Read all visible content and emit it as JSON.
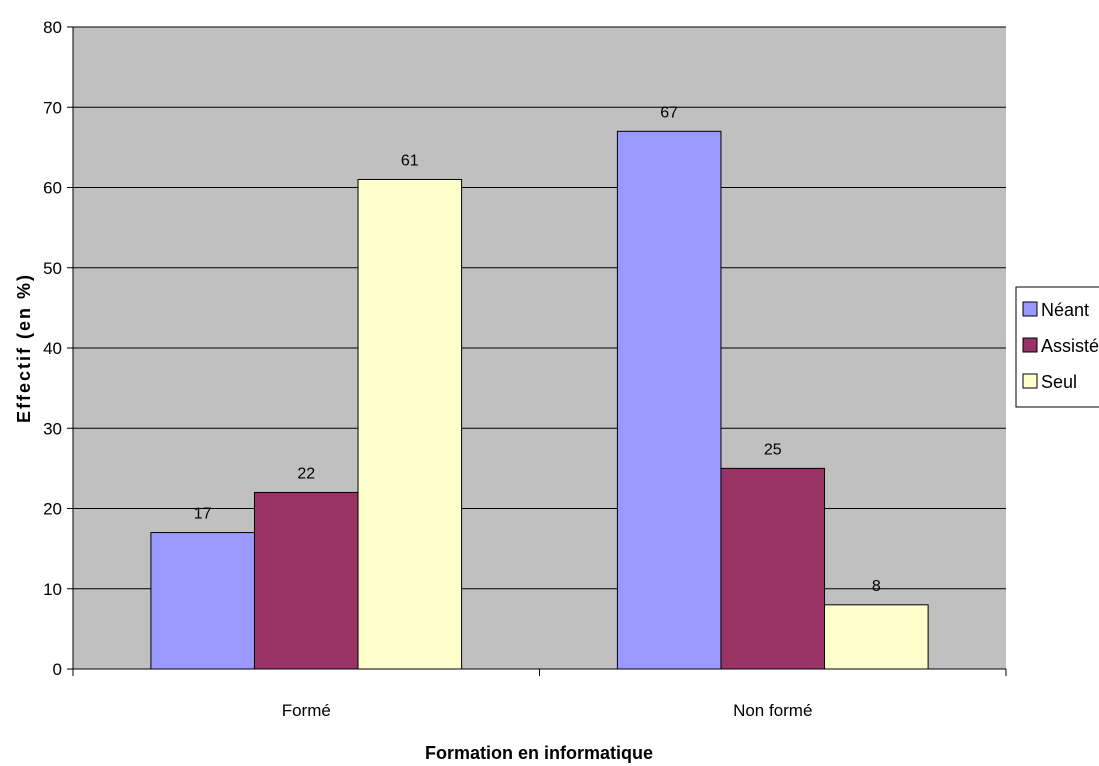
{
  "chart_data": {
    "type": "bar",
    "title": "",
    "xlabel": "Formation en informatique",
    "ylabel": "Effectif (en %)",
    "ylim": [
      0,
      80
    ],
    "yticks": [
      "0",
      "10",
      "20",
      "30",
      "40",
      "50",
      "60",
      "70",
      "80"
    ],
    "categories": [
      "Formé",
      "Non formé"
    ],
    "series": [
      {
        "name": "Néant",
        "values": [
          17,
          67
        ],
        "color": "#9999ff"
      },
      {
        "name": "Assisté",
        "values": [
          22,
          25
        ],
        "color": "#993366"
      },
      {
        "name": "Seul",
        "values": [
          61,
          8
        ],
        "color": "#ffffcc"
      }
    ],
    "grid": true,
    "plot_background": "#c0c0c0",
    "legend": "right"
  }
}
